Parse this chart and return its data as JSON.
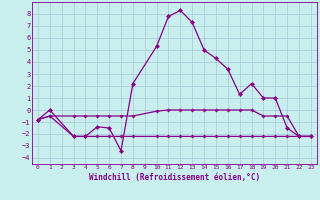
{
  "xlabel": "Windchill (Refroidissement éolien,°C)",
  "background_color": "#c8eeee",
  "grid_color": "#a8c8d8",
  "line_color": "#880088",
  "xlim": [
    -0.5,
    23.5
  ],
  "ylim": [
    -4.5,
    9.0
  ],
  "xticks": [
    0,
    1,
    2,
    3,
    4,
    5,
    6,
    7,
    8,
    9,
    10,
    11,
    12,
    13,
    14,
    15,
    16,
    17,
    18,
    19,
    20,
    21,
    22,
    23
  ],
  "yticks": [
    -4,
    -3,
    -2,
    -1,
    0,
    1,
    2,
    3,
    4,
    5,
    6,
    7,
    8
  ],
  "series1_x": [
    0,
    1,
    3,
    4,
    5,
    6,
    7,
    8,
    10,
    11,
    12,
    13,
    14,
    15,
    16,
    17,
    18,
    19,
    20,
    21,
    22,
    23
  ],
  "series1_y": [
    -0.8,
    0.0,
    -2.2,
    -2.2,
    -1.4,
    -1.5,
    -3.4,
    2.2,
    5.3,
    7.8,
    8.3,
    7.3,
    5.0,
    4.3,
    3.4,
    1.3,
    2.2,
    1.0,
    1.0,
    -1.5,
    -2.2,
    -2.2
  ],
  "series2_x": [
    0,
    1,
    3,
    4,
    5,
    6,
    7,
    8,
    10,
    11,
    12,
    13,
    14,
    15,
    16,
    17,
    18,
    19,
    20,
    21,
    22,
    23
  ],
  "series2_y": [
    -0.8,
    -0.5,
    -0.5,
    -0.5,
    -0.5,
    -0.5,
    -0.5,
    -0.5,
    -0.1,
    0.0,
    0.0,
    0.0,
    0.0,
    0.0,
    0.0,
    0.0,
    0.0,
    -0.5,
    -0.5,
    -0.5,
    -2.2,
    -2.2
  ],
  "series3_x": [
    0,
    1,
    3,
    4,
    5,
    6,
    7,
    8,
    10,
    11,
    12,
    13,
    14,
    15,
    16,
    17,
    18,
    19,
    20,
    21,
    22,
    23
  ],
  "series3_y": [
    -0.8,
    -0.5,
    -2.2,
    -2.2,
    -2.2,
    -2.2,
    -2.2,
    -2.2,
    -2.2,
    -2.2,
    -2.2,
    -2.2,
    -2.2,
    -2.2,
    -2.2,
    -2.2,
    -2.2,
    -2.2,
    -2.2,
    -2.2,
    -2.2,
    -2.2
  ]
}
